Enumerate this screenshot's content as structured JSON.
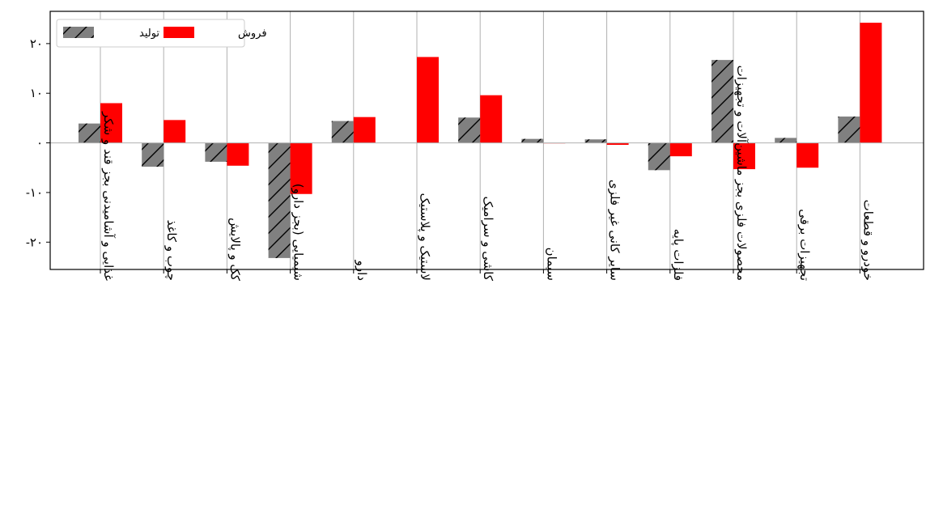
{
  "chart_data": {
    "type": "bar",
    "categories": [
      "غذایی و آشامیدنی بجز قند و شکر",
      "چوب و کاغذ",
      "کک و پالایش",
      "شیمیایی (بجز دارو)",
      "دارو",
      "لاستیک و پلاستیک",
      "کاشی و سرامیک",
      "سیمان",
      "سایر کانی غیر فلزی",
      "فلزات پایه",
      "محصولات فلزی بجز ماشین‌آلات و تجهیزات",
      "تجهیزات برقی",
      "خودرو و قطعات"
    ],
    "series": [
      {
        "name": "تولید",
        "color": "#808080",
        "hatch": "diagonal",
        "values": [
          3.9,
          -4.8,
          -3.8,
          -23.2,
          4.4,
          0,
          5.1,
          0.8,
          0.7,
          -5.5,
          16.7,
          1.0,
          5.3
        ]
      },
      {
        "name": "فروش",
        "color": "#ff0000",
        "hatch": "none",
        "values": [
          8.0,
          4.6,
          -4.6,
          -10.3,
          5.2,
          17.3,
          9.6,
          -0.1,
          -0.4,
          -2.7,
          -5.3,
          -5.0,
          24.2
        ]
      }
    ],
    "yticks": [
      {
        "value": 20,
        "label": "۲۰"
      },
      {
        "value": 10,
        "label": "۱۰"
      },
      {
        "value": 0,
        "label": "۰"
      },
      {
        "value": -10,
        "label": "-۱۰"
      },
      {
        "value": -20,
        "label": "-۲۰"
      }
    ],
    "ylim": [
      -25.5,
      26.5
    ],
    "grid": "vertical",
    "legend_position": "top-left",
    "title": "",
    "xlabel": "",
    "ylabel": ""
  }
}
